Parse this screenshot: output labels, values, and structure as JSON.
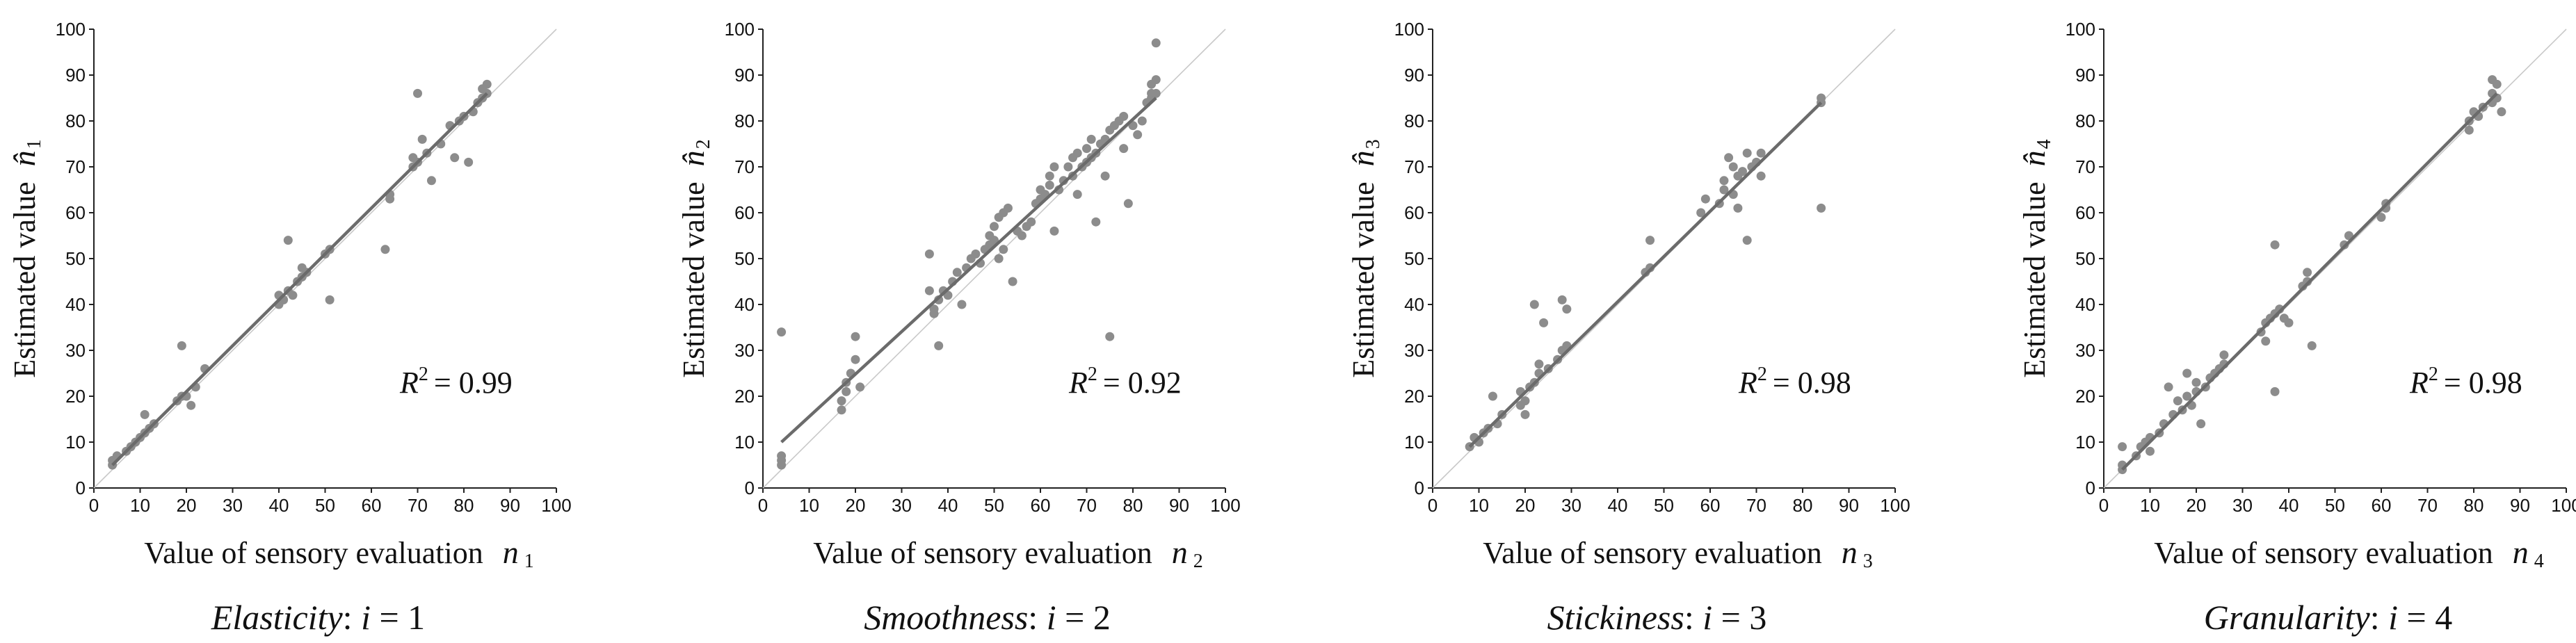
{
  "figure": {
    "caption_separator": ":",
    "caption_index_text": " i = "
  },
  "chart_data": [
    {
      "type": "scatter",
      "panel_label": "Elasticity",
      "index": "1",
      "xlabel": "Value of sensory evaluation",
      "xlabel_symbol": "n",
      "xlabel_subscript": "1",
      "ylabel": "Estimated value",
      "ylabel_symbol": "n̂",
      "ylabel_subscript": "1",
      "xlim": [
        0,
        100
      ],
      "ylim": [
        0,
        100
      ],
      "xticks": [
        0,
        10,
        20,
        30,
        40,
        50,
        60,
        70,
        80,
        90,
        100
      ],
      "yticks": [
        0,
        10,
        20,
        30,
        40,
        50,
        60,
        70,
        80,
        90,
        100
      ],
      "r2_label": "R",
      "r2_exponent": "2",
      "r2_value": "= 0.99",
      "fit_line": {
        "x": [
          4,
          85
        ],
        "y": [
          5,
          86
        ]
      },
      "identity_line": true,
      "points": [
        [
          4,
          5
        ],
        [
          4,
          6
        ],
        [
          5,
          7
        ],
        [
          7,
          8
        ],
        [
          8,
          9
        ],
        [
          9,
          10
        ],
        [
          10,
          11
        ],
        [
          11,
          12
        ],
        [
          11,
          16
        ],
        [
          12,
          13
        ],
        [
          13,
          14
        ],
        [
          18,
          19
        ],
        [
          19,
          20
        ],
        [
          19,
          31
        ],
        [
          20,
          20
        ],
        [
          21,
          18
        ],
        [
          22,
          22
        ],
        [
          24,
          26
        ],
        [
          40,
          40
        ],
        [
          40,
          42
        ],
        [
          41,
          41
        ],
        [
          42,
          43
        ],
        [
          42,
          54
        ],
        [
          43,
          42
        ],
        [
          44,
          45
        ],
        [
          45,
          46
        ],
        [
          45,
          48
        ],
        [
          46,
          47
        ],
        [
          50,
          51
        ],
        [
          51,
          41
        ],
        [
          51,
          52
        ],
        [
          63,
          52
        ],
        [
          64,
          63
        ],
        [
          64,
          64
        ],
        [
          69,
          70
        ],
        [
          69,
          72
        ],
        [
          70,
          71
        ],
        [
          70,
          86
        ],
        [
          71,
          76
        ],
        [
          72,
          73
        ],
        [
          73,
          67
        ],
        [
          75,
          75
        ],
        [
          77,
          79
        ],
        [
          78,
          72
        ],
        [
          79,
          80
        ],
        [
          80,
          81
        ],
        [
          81,
          71
        ],
        [
          82,
          82
        ],
        [
          83,
          84
        ],
        [
          84,
          85
        ],
        [
          84,
          87
        ],
        [
          85,
          86
        ],
        [
          85,
          88
        ]
      ]
    },
    {
      "type": "scatter",
      "panel_label": "Smoothness",
      "index": "2",
      "xlabel": "Value of sensory evaluation",
      "xlabel_symbol": "n",
      "xlabel_subscript": "2",
      "ylabel": "Estimated value",
      "ylabel_symbol": "n̂",
      "ylabel_subscript": "2",
      "xlim": [
        0,
        100
      ],
      "ylim": [
        0,
        100
      ],
      "xticks": [
        0,
        10,
        20,
        30,
        40,
        50,
        60,
        70,
        80,
        90,
        100
      ],
      "yticks": [
        0,
        10,
        20,
        30,
        40,
        50,
        60,
        70,
        80,
        90,
        100
      ],
      "r2_label": "R",
      "r2_exponent": "2",
      "r2_value": "= 0.92",
      "fit_line": {
        "x": [
          4,
          85
        ],
        "y": [
          10,
          85
        ]
      },
      "identity_line": true,
      "points": [
        [
          4,
          5
        ],
        [
          4,
          6
        ],
        [
          4,
          7
        ],
        [
          4,
          34
        ],
        [
          17,
          17
        ],
        [
          17,
          19
        ],
        [
          18,
          21
        ],
        [
          18,
          23
        ],
        [
          19,
          25
        ],
        [
          20,
          28
        ],
        [
          20,
          33
        ],
        [
          21,
          22
        ],
        [
          36,
          43
        ],
        [
          36,
          51
        ],
        [
          37,
          38
        ],
        [
          37,
          39
        ],
        [
          38,
          41
        ],
        [
          38,
          31
        ],
        [
          39,
          43
        ],
        [
          40,
          42
        ],
        [
          41,
          45
        ],
        [
          42,
          47
        ],
        [
          43,
          40
        ],
        [
          44,
          48
        ],
        [
          45,
          50
        ],
        [
          46,
          51
        ],
        [
          47,
          49
        ],
        [
          48,
          52
        ],
        [
          49,
          53
        ],
        [
          49,
          55
        ],
        [
          50,
          54
        ],
        [
          50,
          57
        ],
        [
          51,
          59
        ],
        [
          51,
          50
        ],
        [
          52,
          52
        ],
        [
          52,
          60
        ],
        [
          53,
          61
        ],
        [
          54,
          45
        ],
        [
          55,
          56
        ],
        [
          56,
          55
        ],
        [
          57,
          57
        ],
        [
          58,
          58
        ],
        [
          59,
          62
        ],
        [
          60,
          63
        ],
        [
          60,
          65
        ],
        [
          61,
          64
        ],
        [
          62,
          66
        ],
        [
          62,
          68
        ],
        [
          63,
          56
        ],
        [
          63,
          70
        ],
        [
          64,
          65
        ],
        [
          65,
          67
        ],
        [
          66,
          70
        ],
        [
          67,
          68
        ],
        [
          67,
          72
        ],
        [
          68,
          73
        ],
        [
          68,
          64
        ],
        [
          69,
          70
        ],
        [
          70,
          71
        ],
        [
          70,
          74
        ],
        [
          71,
          72
        ],
        [
          71,
          76
        ],
        [
          72,
          58
        ],
        [
          72,
          73
        ],
        [
          73,
          75
        ],
        [
          74,
          76
        ],
        [
          74,
          68
        ],
        [
          75,
          78
        ],
        [
          75,
          33
        ],
        [
          76,
          79
        ],
        [
          77,
          80
        ],
        [
          78,
          74
        ],
        [
          78,
          81
        ],
        [
          79,
          62
        ],
        [
          80,
          79
        ],
        [
          81,
          77
        ],
        [
          82,
          80
        ],
        [
          83,
          84
        ],
        [
          84,
          85
        ],
        [
          84,
          86
        ],
        [
          84,
          88
        ],
        [
          85,
          89
        ],
        [
          85,
          86
        ],
        [
          85,
          97
        ]
      ]
    },
    {
      "type": "scatter",
      "panel_label": "Stickiness",
      "index": "3",
      "xlabel": "Value of sensory evaluation",
      "xlabel_symbol": "n",
      "xlabel_subscript": "3",
      "ylabel": "Estimated value",
      "ylabel_symbol": "n̂",
      "ylabel_subscript": "3",
      "xlim": [
        0,
        100
      ],
      "ylim": [
        0,
        100
      ],
      "xticks": [
        0,
        10,
        20,
        30,
        40,
        50,
        60,
        70,
        80,
        90,
        100
      ],
      "yticks": [
        0,
        10,
        20,
        30,
        40,
        50,
        60,
        70,
        80,
        90,
        100
      ],
      "r2_label": "R",
      "r2_exponent": "2",
      "r2_value": "= 0.98",
      "fit_line": {
        "x": [
          8,
          84
        ],
        "y": [
          9,
          84
        ]
      },
      "identity_line": true,
      "points": [
        [
          8,
          9
        ],
        [
          9,
          11
        ],
        [
          10,
          10
        ],
        [
          11,
          12
        ],
        [
          12,
          13
        ],
        [
          13,
          20
        ],
        [
          14,
          14
        ],
        [
          15,
          16
        ],
        [
          19,
          18
        ],
        [
          19,
          21
        ],
        [
          20,
          19
        ],
        [
          20,
          16
        ],
        [
          21,
          22
        ],
        [
          22,
          40
        ],
        [
          22,
          23
        ],
        [
          23,
          25
        ],
        [
          23,
          27
        ],
        [
          24,
          36
        ],
        [
          25,
          26
        ],
        [
          27,
          28
        ],
        [
          28,
          30
        ],
        [
          28,
          41
        ],
        [
          29,
          31
        ],
        [
          29,
          39
        ],
        [
          46,
          47
        ],
        [
          47,
          48
        ],
        [
          47,
          54
        ],
        [
          58,
          60
        ],
        [
          59,
          63
        ],
        [
          62,
          62
        ],
        [
          63,
          65
        ],
        [
          63,
          67
        ],
        [
          64,
          72
        ],
        [
          65,
          64
        ],
        [
          65,
          70
        ],
        [
          66,
          68
        ],
        [
          66,
          61
        ],
        [
          67,
          69
        ],
        [
          68,
          54
        ],
        [
          68,
          73
        ],
        [
          69,
          70
        ],
        [
          70,
          71
        ],
        [
          71,
          68
        ],
        [
          71,
          73
        ],
        [
          84,
          84
        ],
        [
          84,
          85
        ],
        [
          84,
          61
        ]
      ]
    },
    {
      "type": "scatter",
      "panel_label": "Granularity",
      "index": "4",
      "xlabel": "Value of sensory evaluation",
      "xlabel_symbol": "n",
      "xlabel_subscript": "4",
      "ylabel": "Estimated value",
      "ylabel_symbol": "n̂",
      "ylabel_subscript": "4",
      "xlim": [
        0,
        100
      ],
      "ylim": [
        0,
        100
      ],
      "xticks": [
        0,
        10,
        20,
        30,
        40,
        50,
        60,
        70,
        80,
        90,
        100
      ],
      "yticks": [
        0,
        10,
        20,
        30,
        40,
        50,
        60,
        70,
        80,
        90,
        100
      ],
      "r2_label": "R",
      "r2_exponent": "2",
      "r2_value": "= 0.98",
      "fit_line": {
        "x": [
          4,
          85
        ],
        "y": [
          4,
          86
        ]
      },
      "identity_line": true,
      "points": [
        [
          4,
          4
        ],
        [
          4,
          5
        ],
        [
          4,
          9
        ],
        [
          7,
          7
        ],
        [
          8,
          9
        ],
        [
          9,
          10
        ],
        [
          10,
          11
        ],
        [
          10,
          8
        ],
        [
          12,
          12
        ],
        [
          13,
          14
        ],
        [
          14,
          22
        ],
        [
          15,
          16
        ],
        [
          16,
          19
        ],
        [
          17,
          17
        ],
        [
          18,
          20
        ],
        [
          18,
          25
        ],
        [
          19,
          18
        ],
        [
          20,
          21
        ],
        [
          20,
          23
        ],
        [
          21,
          14
        ],
        [
          22,
          22
        ],
        [
          23,
          24
        ],
        [
          24,
          25
        ],
        [
          25,
          26
        ],
        [
          26,
          27
        ],
        [
          26,
          29
        ],
        [
          34,
          34
        ],
        [
          35,
          36
        ],
        [
          35,
          32
        ],
        [
          36,
          37
        ],
        [
          37,
          38
        ],
        [
          37,
          53
        ],
        [
          37,
          21
        ],
        [
          38,
          39
        ],
        [
          39,
          37
        ],
        [
          40,
          36
        ],
        [
          43,
          44
        ],
        [
          44,
          45
        ],
        [
          44,
          47
        ],
        [
          45,
          31
        ],
        [
          52,
          53
        ],
        [
          53,
          55
        ],
        [
          60,
          59
        ],
        [
          61,
          61
        ],
        [
          61,
          62
        ],
        [
          79,
          78
        ],
        [
          79,
          80
        ],
        [
          80,
          82
        ],
        [
          81,
          81
        ],
        [
          82,
          83
        ],
        [
          84,
          84
        ],
        [
          84,
          86
        ],
        [
          85,
          85
        ],
        [
          85,
          88
        ],
        [
          86,
          82
        ],
        [
          84,
          89
        ]
      ]
    }
  ]
}
